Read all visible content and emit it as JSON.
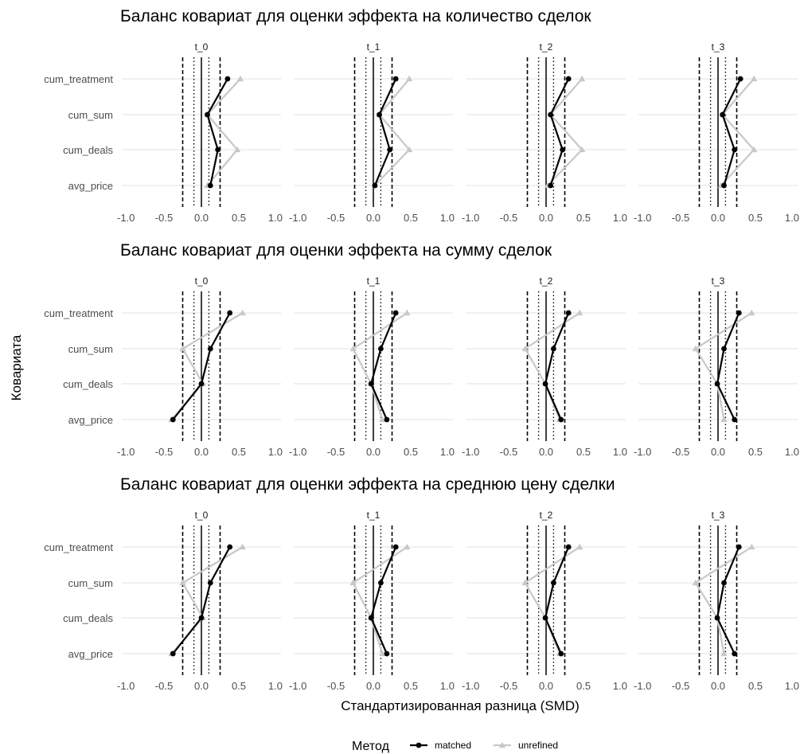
{
  "chart_data": {
    "type": "line",
    "panel_titles": [
      "Баланс ковариат для оценки эффекта на количество сделок",
      "Баланс ковариат для оценки эффекта на сумму сделок",
      "Баланс ковариат для оценки эффекта на среднюю цену сделки"
    ],
    "facets": [
      "t_0",
      "t_1",
      "t_2",
      "t_3"
    ],
    "covariates": [
      "cum_treatment",
      "cum_sum",
      "cum_deals",
      "avg_price"
    ],
    "xlabel": "Стандартизированная разница (SMD)",
    "ylabel": "Ковариата",
    "xlim": [
      -1.0,
      1.0
    ],
    "xticks": [
      -1.0,
      -0.5,
      0.0,
      0.5,
      1.0
    ],
    "xtick_labels": [
      "-1.0",
      "-0.5",
      "0.0",
      "0.5",
      "1.0"
    ],
    "reference_lines": {
      "solid": [
        0.0
      ],
      "dotted": [
        -0.1,
        0.1
      ],
      "dashed": [
        -0.25,
        0.25
      ]
    },
    "legend": {
      "title": "Метод",
      "position": "bottom",
      "entries": [
        {
          "name": "matched",
          "color": "#000000",
          "marker": "circle"
        },
        {
          "name": "unrefined",
          "color": "#c8c8c8",
          "marker": "triangle"
        }
      ]
    },
    "grid": true,
    "colors": {
      "matched": "#000000",
      "unrefined": "#c8c8c8"
    },
    "panels": [
      {
        "facets": [
          {
            "matched": [
              0.35,
              0.08,
              0.22,
              0.12
            ],
            "unrefined": [
              0.52,
              0.08,
              0.48,
              0.08
            ]
          },
          {
            "matched": [
              0.3,
              0.08,
              0.22,
              0.02
            ],
            "unrefined": [
              0.48,
              0.08,
              0.48,
              0.02
            ]
          },
          {
            "matched": [
              0.3,
              0.06,
              0.22,
              0.06
            ],
            "unrefined": [
              0.48,
              0.06,
              0.48,
              0.02
            ]
          },
          {
            "matched": [
              0.3,
              0.06,
              0.22,
              0.08
            ],
            "unrefined": [
              0.48,
              0.06,
              0.48,
              0.04
            ]
          }
        ]
      },
      {
        "facets": [
          {
            "matched": [
              0.38,
              0.12,
              0.0,
              -0.38
            ],
            "unrefined": [
              0.55,
              -0.25,
              0.02,
              -0.4
            ]
          },
          {
            "matched": [
              0.3,
              0.1,
              -0.03,
              0.18
            ],
            "unrefined": [
              0.45,
              -0.27,
              -0.03,
              0.12
            ]
          },
          {
            "matched": [
              0.3,
              0.1,
              -0.01,
              0.2
            ],
            "unrefined": [
              0.45,
              -0.28,
              -0.01,
              0.18
            ]
          },
          {
            "matched": [
              0.28,
              0.08,
              -0.01,
              0.22
            ],
            "unrefined": [
              0.45,
              -0.3,
              -0.01,
              0.08
            ]
          }
        ]
      },
      {
        "facets": [
          {
            "matched": [
              0.38,
              0.12,
              0.0,
              -0.38
            ],
            "unrefined": [
              0.55,
              -0.25,
              0.02,
              -0.4
            ]
          },
          {
            "matched": [
              0.3,
              0.1,
              -0.03,
              0.18
            ],
            "unrefined": [
              0.45,
              -0.27,
              -0.03,
              0.12
            ]
          },
          {
            "matched": [
              0.3,
              0.1,
              -0.01,
              0.2
            ],
            "unrefined": [
              0.45,
              -0.28,
              -0.01,
              0.18
            ]
          },
          {
            "matched": [
              0.28,
              0.08,
              -0.01,
              0.22
            ],
            "unrefined": [
              0.45,
              -0.3,
              -0.01,
              0.08
            ]
          }
        ]
      }
    ]
  }
}
